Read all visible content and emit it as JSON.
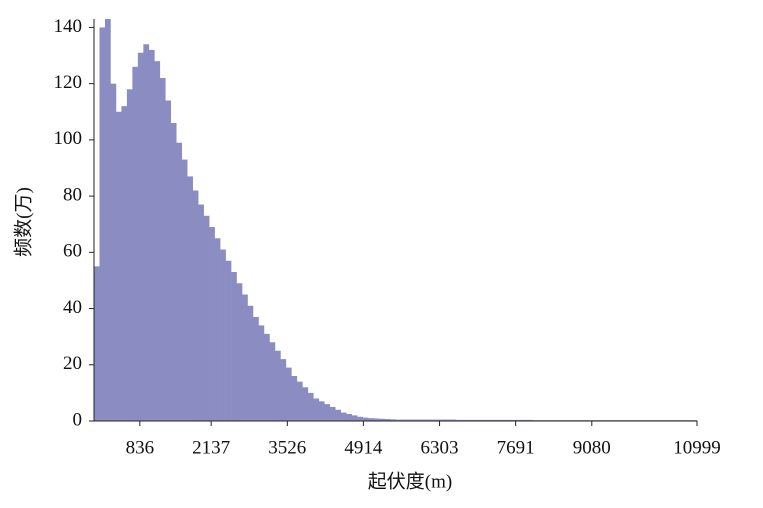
{
  "chart_data": {
    "type": "histogram",
    "xlabel": "起伏度(m)",
    "ylabel": "频数(万)",
    "bins": [
      0,
      100,
      200,
      300,
      400,
      500,
      600,
      700,
      800,
      900,
      1000,
      1100,
      1200,
      1300,
      1400,
      1500,
      1600,
      1700,
      1800,
      1900,
      2000,
      2100,
      2200,
      2300,
      2400,
      2500,
      2600,
      2700,
      2800,
      2900,
      3000,
      3100,
      3200,
      3300,
      3400,
      3500,
      3600,
      3700,
      3800,
      3900,
      4000,
      4100,
      4200,
      4300,
      4400,
      4500,
      4600,
      4700,
      4800,
      4900,
      5000,
      5100,
      5200,
      5300,
      5400,
      5500,
      5600,
      5700,
      5800,
      5900,
      6000,
      6100,
      6200,
      6300,
      6400,
      6500,
      6600,
      6700,
      6800,
      6900,
      7000,
      7100,
      7200,
      7300,
      7400,
      7500,
      7600,
      7700,
      7800,
      7900,
      8000,
      8100,
      8200,
      8300,
      8400,
      8500,
      8600,
      8700,
      8800,
      8900,
      9000,
      9100,
      9200,
      9300,
      9400,
      9500,
      9600,
      9700,
      9800,
      9900,
      10000,
      10100,
      10200,
      10300,
      10400,
      10500,
      10600,
      10700,
      10800,
      10900,
      10999
    ],
    "values": [
      55,
      140,
      143,
      120,
      110,
      112,
      118,
      126,
      131,
      134,
      132,
      128,
      122,
      114,
      106,
      99,
      93,
      87,
      82,
      77,
      73,
      69,
      65,
      61,
      57,
      53,
      49,
      45,
      41,
      37,
      34,
      31,
      28,
      25,
      22,
      19,
      16,
      14,
      12,
      10,
      8,
      7,
      6,
      5,
      4,
      3,
      2.5,
      2,
      1.5,
      1.2,
      1,
      0.9,
      0.8,
      0.7,
      0.6,
      0.5,
      0.5,
      0.5,
      0.5,
      0.5,
      0.5,
      0.5,
      0.5,
      0.5,
      0.5,
      0.5,
      0.4,
      0.4,
      0.4,
      0.4,
      0.4,
      0.4,
      0.4,
      0.4,
      0.4,
      0.4,
      0.4,
      0.4,
      0.4,
      0.4,
      0.3,
      0.3,
      0.3,
      0.3,
      0.3,
      0.3,
      0.3,
      0.3,
      0.3,
      0.3,
      0.3,
      0.3,
      0.3,
      0.3,
      0.3,
      0.3,
      0.3,
      0.3,
      0.3,
      0.3,
      0.3,
      0.3,
      0.3,
      0.3,
      0.3,
      0.3,
      0.3,
      0.3,
      0.3,
      0.3
    ],
    "color": "#8b8cc1",
    "xlim": [
      0,
      10999
    ],
    "xticks": [
      836,
      2137,
      3526,
      4914,
      6303,
      7691,
      9080,
      10999
    ],
    "ylim": [
      0,
      143
    ],
    "yticks": [
      0,
      20,
      40,
      60,
      80,
      100,
      120,
      140
    ]
  }
}
